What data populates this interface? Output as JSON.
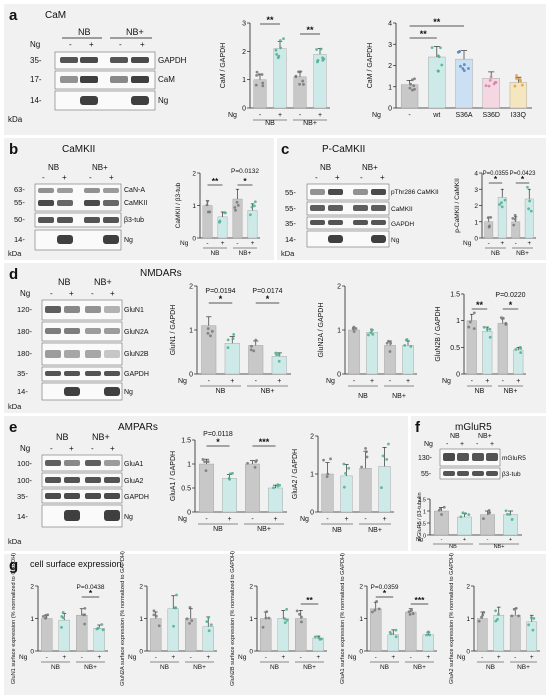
{
  "colors": {
    "panel_bg": "#f1f1f1",
    "bar_gray": "#c8c8c8",
    "bar_teal": "#cdeae8",
    "bar_blue": "#cbe0f2",
    "bar_pink": "#f5d7e1",
    "bar_yellow": "#f4e6bf",
    "dot_gray": "#777777",
    "dot_green": "#4caf8f",
    "dot_purple": "#9a6bc0",
    "dot_blue": "#4e7fc2",
    "dot_pink": "#d780a6",
    "dot_orange": "#e0a24a"
  },
  "panels": [
    {
      "id": "a",
      "letter": "a",
      "title": "CaM",
      "blot": {
        "groups": [
          "NB",
          "NB+"
        ],
        "ng_label": "Ng",
        "lanes": [
          "-",
          "+",
          "-",
          "+"
        ],
        "mw": [
          "35-",
          "17-",
          "14-"
        ],
        "labels": [
          "GAPDH",
          "CaM",
          "Ng"
        ],
        "kda": "kDa"
      }
    },
    {
      "id": "b",
      "letter": "b",
      "title": "CaMKII",
      "blot": {
        "groups": [
          "NB",
          "NB+"
        ],
        "lanes": [
          "-",
          "+",
          "-",
          "+"
        ],
        "mw": [
          "63-",
          "55-",
          "50-",
          "14-"
        ],
        "labels": [
          "CaN-A",
          "CaMKII",
          "β3-tub",
          "Ng"
        ],
        "kda": "kDa"
      }
    },
    {
      "id": "c",
      "letter": "c",
      "title": "P-CaMKII",
      "blot": {
        "groups": [
          "NB",
          "NB+"
        ],
        "lanes": [
          "-",
          "+",
          "-",
          "+"
        ],
        "mw": [
          "55-",
          "55-",
          "35-",
          "14-"
        ],
        "labels": [
          "pThr286 CaMKII",
          "CaMKII",
          "GAPDH",
          "Ng"
        ],
        "kda": "kDa"
      }
    },
    {
      "id": "d",
      "letter": "d",
      "title": "NMDARs",
      "blot": {
        "groups": [
          "NB",
          "NB+"
        ],
        "ng_label": "Ng",
        "lanes": [
          "-",
          "+",
          "-",
          "+"
        ],
        "mw": [
          "120-",
          "180-",
          "180-",
          "35-",
          "14-"
        ],
        "labels": [
          "GluN1",
          "GluN2A",
          "GluN2B",
          "GAPDH",
          "Ng"
        ],
        "kda": "kDa"
      }
    },
    {
      "id": "e",
      "letter": "e",
      "title": "AMPARs",
      "blot": {
        "groups": [
          "NB",
          "NB+"
        ],
        "ng_label": "Ng",
        "lanes": [
          "-",
          "+",
          "-",
          "+"
        ],
        "mw": [
          "100-",
          "100-",
          "35-",
          "14-"
        ],
        "labels": [
          "GluA1",
          "GluA2",
          "GAPDH",
          "Ng"
        ],
        "kda": "kDa"
      }
    },
    {
      "id": "f",
      "letter": "f",
      "title": "mGluR5",
      "blot": {
        "groups": [
          "NB",
          "NB+"
        ],
        "ng_label": "Ng",
        "lanes": [
          "-",
          "+",
          "-",
          "+"
        ],
        "mw": [
          "130-",
          "55-"
        ],
        "labels": [
          "mGluR5",
          "β3-tub"
        ],
        "kda": "kDa"
      }
    },
    {
      "id": "g",
      "letter": "g",
      "title": "cell surface expression"
    }
  ],
  "chart_data": [
    {
      "id": "a1",
      "type": "bar",
      "ylabel": "CaM / GAPDH",
      "ylim": [
        0,
        3
      ],
      "yticks": [
        0,
        1,
        2,
        3
      ],
      "ng_label": "Ng",
      "ng_signs": [
        "-",
        "+",
        "-",
        "+"
      ],
      "groups": [
        "NB",
        "NB+"
      ],
      "values": [
        1.0,
        2.1,
        1.1,
        1.9
      ],
      "errors": [
        0.2,
        0.25,
        0.2,
        0.2
      ],
      "colors": [
        "gray",
        "teal",
        "gray",
        "teal"
      ],
      "annotations": [
        {
          "text": "**"
        },
        {
          "text": "**"
        }
      ]
    },
    {
      "id": "a2",
      "type": "bar",
      "ylabel": "CaM / GAPDH",
      "ylim": [
        0,
        4
      ],
      "yticks": [
        0,
        1,
        2,
        3,
        4
      ],
      "ng_label": "Ng",
      "categories": [
        "-",
        "wt",
        "S36A",
        "S36D",
        "I33Q"
      ],
      "values": [
        1.1,
        2.4,
        2.3,
        1.4,
        1.2
      ],
      "errors": [
        0.2,
        0.5,
        0.4,
        0.3,
        0.25
      ],
      "colors": [
        "gray",
        "teal",
        "blue",
        "pink",
        "yellow"
      ],
      "annotations": [
        {
          "text": "**"
        },
        {
          "text": "**"
        }
      ]
    },
    {
      "id": "b",
      "type": "bar",
      "ylabel": "CaMKII / β3-tub",
      "ylim": [
        0,
        2
      ],
      "yticks": [
        0,
        1,
        2
      ],
      "ng_label": "Ng",
      "ng_signs": [
        "-",
        "+",
        "-",
        "+"
      ],
      "groups": [
        "NB",
        "NB+"
      ],
      "values": [
        1.0,
        0.65,
        1.2,
        0.85
      ],
      "errors": [
        0.15,
        0.15,
        0.3,
        0.2
      ],
      "colors": [
        "gray",
        "teal",
        "gray",
        "teal"
      ],
      "annotations": [
        {
          "text": "**"
        },
        {
          "text": "P=0.0132"
        },
        {
          "text": "*"
        }
      ]
    },
    {
      "id": "c",
      "type": "bar",
      "ylabel": "p-CaMKII / CaMKII",
      "ylim": [
        0,
        4
      ],
      "yticks": [
        0,
        1,
        2,
        3,
        4
      ],
      "ng_label": "Ng",
      "ng_signs": [
        "-",
        "+",
        "-",
        "+"
      ],
      "groups": [
        "NB",
        "NB+"
      ],
      "values": [
        1.0,
        2.5,
        1.0,
        2.4
      ],
      "errors": [
        0.3,
        0.5,
        0.3,
        0.6
      ],
      "colors": [
        "gray",
        "teal",
        "gray",
        "teal"
      ],
      "annotations": [
        {
          "text": "P=0.0355"
        },
        {
          "text": "P=0.0423"
        },
        {
          "text": "*"
        },
        {
          "text": "*"
        }
      ]
    },
    {
      "id": "d1",
      "type": "bar",
      "ylabel": "GluN1 / GAPDH",
      "ylim": [
        0,
        2
      ],
      "yticks": [
        0,
        1,
        2
      ],
      "ng_label": "Ng",
      "ng_signs": [
        "-",
        "+",
        "-",
        "+"
      ],
      "groups": [
        "NB",
        "NB+"
      ],
      "values": [
        1.1,
        0.7,
        0.65,
        0.4
      ],
      "errors": [
        0.2,
        0.15,
        0.1,
        0.08
      ],
      "colors": [
        "gray",
        "teal",
        "gray",
        "teal"
      ],
      "annotations": [
        {
          "text": "P=0.0194"
        },
        {
          "text": "P=0.0174"
        },
        {
          "text": "*"
        },
        {
          "text": "*"
        }
      ]
    },
    {
      "id": "d2",
      "type": "bar",
      "ylabel": "GluN2A / GAPDH",
      "ylim": [
        0,
        2
      ],
      "yticks": [
        0,
        1,
        2
      ],
      "ng_label": "Ng",
      "ng_signs": [
        "-",
        "+",
        "-",
        "+"
      ],
      "groups": [
        "NB",
        "NB+"
      ],
      "values": [
        1.0,
        0.95,
        0.65,
        0.65
      ],
      "errors": [
        0.05,
        0.05,
        0.1,
        0.1
      ],
      "colors": [
        "gray",
        "teal",
        "gray",
        "teal"
      ],
      "annotations": []
    },
    {
      "id": "d3",
      "type": "bar",
      "ylabel": "GluN2B / GAPDH",
      "ylim": [
        0,
        1.5
      ],
      "yticks": [
        0,
        0.5,
        1.0,
        1.5
      ],
      "ng_label": "Ng",
      "ng_signs": [
        "-",
        "+",
        "-",
        "+"
      ],
      "groups": [
        "NB",
        "NB+"
      ],
      "values": [
        1.0,
        0.8,
        0.95,
        0.45
      ],
      "errors": [
        0.12,
        0.08,
        0.08,
        0.05
      ],
      "colors": [
        "gray",
        "teal",
        "gray",
        "teal"
      ],
      "annotations": [
        {
          "text": "**"
        },
        {
          "text": "P=0.0220"
        },
        {
          "text": "*"
        }
      ]
    },
    {
      "id": "e1",
      "type": "bar",
      "ylabel": "GluA1 / GAPDH",
      "ylim": [
        0,
        1.5
      ],
      "yticks": [
        0,
        0.5,
        1.0,
        1.5
      ],
      "ng_label": "Ng",
      "ng_signs": [
        "-",
        "+",
        "-",
        "+"
      ],
      "groups": [
        "NB",
        "NB+"
      ],
      "values": [
        1.0,
        0.7,
        1.0,
        0.5
      ],
      "errors": [
        0.1,
        0.08,
        0.07,
        0.06
      ],
      "colors": [
        "gray",
        "teal",
        "gray",
        "teal"
      ],
      "annotations": [
        {
          "text": "P=0.0118"
        },
        {
          "text": "*"
        },
        {
          "text": "***"
        }
      ]
    },
    {
      "id": "e2",
      "type": "bar",
      "ylabel": "GluA2 / GAPDH",
      "ylim": [
        0,
        2
      ],
      "yticks": [
        0,
        1,
        2
      ],
      "ng_label": "Ng",
      "ng_signs": [
        "-",
        "+",
        "-",
        "+"
      ],
      "groups": [
        "NB",
        "NB+"
      ],
      "values": [
        1.0,
        0.95,
        1.15,
        1.2
      ],
      "errors": [
        0.3,
        0.3,
        0.45,
        0.5
      ],
      "colors": [
        "gray",
        "teal",
        "gray",
        "teal"
      ],
      "annotations": []
    },
    {
      "id": "f",
      "type": "bar",
      "ylabel": "mGluR5 / β3-tubulin",
      "ylim": [
        0,
        1.5
      ],
      "yticks": [
        0,
        0.5,
        1.0,
        1.5
      ],
      "ng_label": "Ng",
      "ng_signs": [
        "-",
        "+",
        "-",
        "+"
      ],
      "groups": [
        "NB",
        "NB+"
      ],
      "values": [
        1.0,
        0.75,
        0.85,
        0.85
      ],
      "errors": [
        0.15,
        0.15,
        0.15,
        0.15
      ],
      "colors": [
        "gray",
        "teal",
        "gray",
        "teal"
      ],
      "annotations": []
    },
    {
      "id": "g1",
      "type": "bar",
      "ylabel": "GluN1 surface expression (% normalized to GAPDH)",
      "ylim": [
        0,
        2
      ],
      "yticks": [
        0,
        1,
        2
      ],
      "ng_label": "Ng",
      "ng_signs": [
        "-",
        "+",
        "-",
        "+"
      ],
      "groups": [
        "NB",
        "NB+"
      ],
      "values": [
        1.0,
        0.95,
        1.1,
        0.7
      ],
      "errors": [
        0.1,
        0.2,
        0.2,
        0.1
      ],
      "colors": [
        "gray",
        "teal",
        "gray",
        "teal"
      ],
      "annotations": [
        {
          "text": "P=0.0438"
        },
        {
          "text": "*"
        }
      ]
    },
    {
      "id": "g2",
      "type": "bar",
      "ylabel": "GluN2A surface expression (% normalized to GAPDH)",
      "ylim": [
        0,
        2
      ],
      "yticks": [
        0,
        1,
        2
      ],
      "ng_label": "Ng",
      "ng_signs": [
        "-",
        "+",
        "-",
        "+"
      ],
      "groups": [
        "NB",
        "NB+"
      ],
      "values": [
        1.0,
        1.3,
        1.0,
        0.75
      ],
      "errors": [
        0.2,
        0.4,
        0.3,
        0.3
      ],
      "colors": [
        "gray",
        "teal",
        "gray",
        "teal"
      ],
      "annotations": []
    },
    {
      "id": "g3",
      "type": "bar",
      "ylabel": "GluN2B surface expression (% normalized to GAPDH)",
      "ylim": [
        0,
        2
      ],
      "yticks": [
        0,
        1,
        2
      ],
      "ng_label": "Ng",
      "ng_signs": [
        "-",
        "+",
        "-",
        "+"
      ],
      "groups": [
        "NB",
        "NB+"
      ],
      "values": [
        1.0,
        1.0,
        1.0,
        0.4
      ],
      "errors": [
        0.2,
        0.25,
        0.25,
        0.06
      ],
      "colors": [
        "gray",
        "teal",
        "gray",
        "teal"
      ],
      "annotations": [
        {
          "text": "**"
        }
      ]
    },
    {
      "id": "g4",
      "type": "bar",
      "ylabel": "GluA1 surface expression (% normalized to GAPDH)",
      "ylim": [
        0,
        2
      ],
      "yticks": [
        0,
        1,
        2
      ],
      "ng_label": "Ng",
      "ng_signs": [
        "-",
        "+",
        "-",
        "+"
      ],
      "groups": [
        "NB",
        "NB+"
      ],
      "values": [
        1.3,
        0.5,
        1.2,
        0.5
      ],
      "errors": [
        0.2,
        0.15,
        0.1,
        0.08
      ],
      "colors": [
        "gray",
        "teal",
        "gray",
        "teal"
      ],
      "annotations": [
        {
          "text": "P=0.0359"
        },
        {
          "text": "*"
        },
        {
          "text": "***"
        }
      ]
    },
    {
      "id": "g5",
      "type": "bar",
      "ylabel": "GluA2 surface expression (% normalized to GAPDH)",
      "ylim": [
        0,
        2
      ],
      "yticks": [
        0,
        1,
        2
      ],
      "ng_label": "Ng",
      "ng_signs": [
        "-",
        "+",
        "-",
        "+"
      ],
      "groups": [
        "NB",
        "NB+"
      ],
      "values": [
        1.0,
        1.1,
        1.1,
        0.9
      ],
      "errors": [
        0.2,
        0.25,
        0.2,
        0.2
      ],
      "colors": [
        "gray",
        "teal",
        "gray",
        "teal"
      ],
      "annotations": []
    }
  ]
}
